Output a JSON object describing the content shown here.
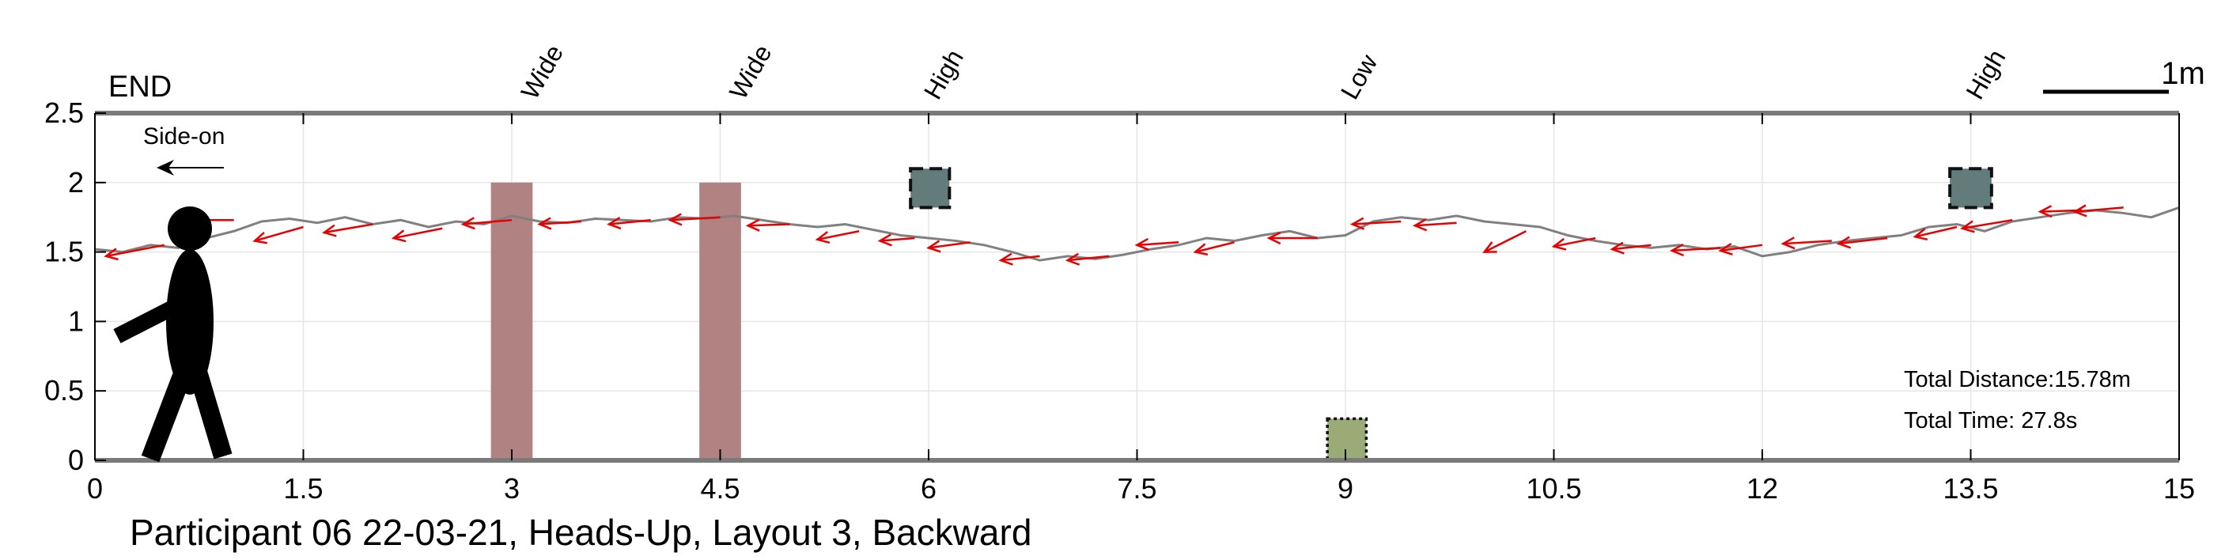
{
  "chart_data": {
    "type": "line",
    "title": "Participant 06 22-03-21, Heads-Up, Layout 3, Backward",
    "xlim": [
      0,
      15
    ],
    "ylim": [
      0,
      2.5
    ],
    "xticks": [
      0,
      1.5,
      3,
      4.5,
      6,
      7.5,
      9,
      10.5,
      12,
      13.5,
      15
    ],
    "xtick_labels": [
      "0",
      "1.5",
      "3",
      "4.5",
      "6",
      "7.5",
      "9",
      "10.5",
      "12",
      "13.5",
      "15"
    ],
    "yticks": [
      0,
      0.5,
      1,
      1.5,
      2,
      2.5
    ],
    "ytick_labels": [
      "0",
      "0.5",
      "1",
      "1.5",
      "2",
      "2.5"
    ],
    "grid": true,
    "end_label": "END",
    "scale_bar_label": "1m",
    "view_label": "Side-on",
    "total_distance": "Total Distance:15.78m",
    "total_time": "Total Time: 27.8s",
    "obstacle_labels": [
      {
        "x": 3.1,
        "label": "Wide"
      },
      {
        "x": 4.6,
        "label": "Wide"
      },
      {
        "x": 6.0,
        "label": "High"
      },
      {
        "x": 9.0,
        "label": "Low"
      },
      {
        "x": 13.5,
        "label": "High"
      }
    ],
    "obstacles": [
      {
        "type": "wide",
        "x0": 2.85,
        "x1": 3.15,
        "y0": 0,
        "y1": 2.0,
        "color": "#b08282"
      },
      {
        "type": "wide",
        "x0": 4.35,
        "x1": 4.65,
        "y0": 0,
        "y1": 2.0,
        "color": "#b08282"
      },
      {
        "type": "high",
        "x0": 5.87,
        "x1": 6.15,
        "y0": 1.82,
        "y1": 2.1,
        "color": "#637b7b"
      },
      {
        "type": "low",
        "x0": 8.87,
        "x1": 9.15,
        "y0": 0,
        "y1": 0.3,
        "color": "#9aab78"
      },
      {
        "type": "high",
        "x0": 13.35,
        "x1": 13.65,
        "y0": 1.82,
        "y1": 2.1,
        "color": "#637b7b"
      }
    ],
    "series": [
      {
        "color": "#808080",
        "x": [
          0,
          0.2,
          0.4,
          0.6,
          0.8,
          1.0,
          1.2,
          1.4,
          1.6,
          1.8,
          2.0,
          2.2,
          2.4,
          2.6,
          2.8,
          3.0,
          3.2,
          3.4,
          3.6,
          3.8,
          4.0,
          4.2,
          4.4,
          4.6,
          4.8,
          5.0,
          5.2,
          5.4,
          5.6,
          5.8,
          6.0,
          6.2,
          6.4,
          6.6,
          6.8,
          7.0,
          7.2,
          7.4,
          7.6,
          7.8,
          8.0,
          8.2,
          8.4,
          8.6,
          8.8,
          9.0,
          9.2,
          9.4,
          9.6,
          9.8,
          10.0,
          10.2,
          10.4,
          10.6,
          10.8,
          11.0,
          11.2,
          11.4,
          11.6,
          11.8,
          12.0,
          12.2,
          12.4,
          12.6,
          12.8,
          13.0,
          13.2,
          13.4,
          13.6,
          13.8,
          14.0,
          14.2,
          14.4,
          14.6,
          14.8,
          15.0
        ],
        "y": [
          1.52,
          1.5,
          1.55,
          1.53,
          1.6,
          1.65,
          1.72,
          1.74,
          1.71,
          1.75,
          1.7,
          1.73,
          1.68,
          1.72,
          1.7,
          1.76,
          1.72,
          1.71,
          1.74,
          1.73,
          1.72,
          1.75,
          1.74,
          1.76,
          1.73,
          1.7,
          1.68,
          1.7,
          1.66,
          1.62,
          1.6,
          1.58,
          1.55,
          1.5,
          1.44,
          1.47,
          1.45,
          1.48,
          1.52,
          1.55,
          1.6,
          1.58,
          1.62,
          1.65,
          1.6,
          1.62,
          1.72,
          1.75,
          1.73,
          1.76,
          1.72,
          1.7,
          1.68,
          1.62,
          1.58,
          1.55,
          1.53,
          1.55,
          1.52,
          1.54,
          1.47,
          1.5,
          1.55,
          1.58,
          1.6,
          1.62,
          1.68,
          1.7,
          1.65,
          1.72,
          1.75,
          1.78,
          1.8,
          1.78,
          1.75,
          1.82
        ]
      }
    ],
    "arrows": {
      "color": "#e60000",
      "points": [
        [
          0.5,
          1.55,
          0.42,
          -0.08
        ],
        [
          1.0,
          1.73,
          0.36,
          0.0
        ],
        [
          1.5,
          1.68,
          0.35,
          -0.1
        ],
        [
          2.0,
          1.7,
          0.35,
          -0.06
        ],
        [
          2.5,
          1.67,
          0.35,
          -0.07
        ],
        [
          3.0,
          1.73,
          0.35,
          -0.03
        ],
        [
          3.5,
          1.72,
          0.3,
          -0.02
        ],
        [
          4.0,
          1.73,
          0.3,
          -0.03
        ],
        [
          4.5,
          1.75,
          0.36,
          -0.02
        ],
        [
          5.0,
          1.7,
          0.3,
          -0.01
        ],
        [
          5.5,
          1.65,
          0.3,
          -0.06
        ],
        [
          5.9,
          1.6,
          0.25,
          -0.02
        ],
        [
          6.3,
          1.57,
          0.3,
          -0.04
        ],
        [
          6.8,
          1.47,
          0.28,
          -0.03
        ],
        [
          7.3,
          1.47,
          0.3,
          -0.03
        ],
        [
          7.8,
          1.57,
          0.3,
          -0.02
        ],
        [
          8.2,
          1.57,
          0.28,
          -0.07
        ],
        [
          8.8,
          1.6,
          0.35,
          0.0
        ],
        [
          9.4,
          1.72,
          0.35,
          -0.02
        ],
        [
          9.8,
          1.71,
          0.3,
          -0.02
        ],
        [
          10.3,
          1.65,
          0.3,
          -0.15
        ],
        [
          10.8,
          1.6,
          0.3,
          -0.06
        ],
        [
          11.2,
          1.55,
          0.28,
          -0.03
        ],
        [
          11.7,
          1.53,
          0.35,
          -0.02
        ],
        [
          12.0,
          1.55,
          0.3,
          -0.04
        ],
        [
          12.5,
          1.58,
          0.35,
          -0.02
        ],
        [
          12.9,
          1.6,
          0.35,
          -0.04
        ],
        [
          13.4,
          1.68,
          0.3,
          -0.07
        ],
        [
          13.8,
          1.73,
          0.36,
          -0.06
        ],
        [
          14.3,
          1.8,
          0.3,
          -0.01
        ],
        [
          14.6,
          1.82,
          0.35,
          -0.03
        ]
      ]
    }
  }
}
